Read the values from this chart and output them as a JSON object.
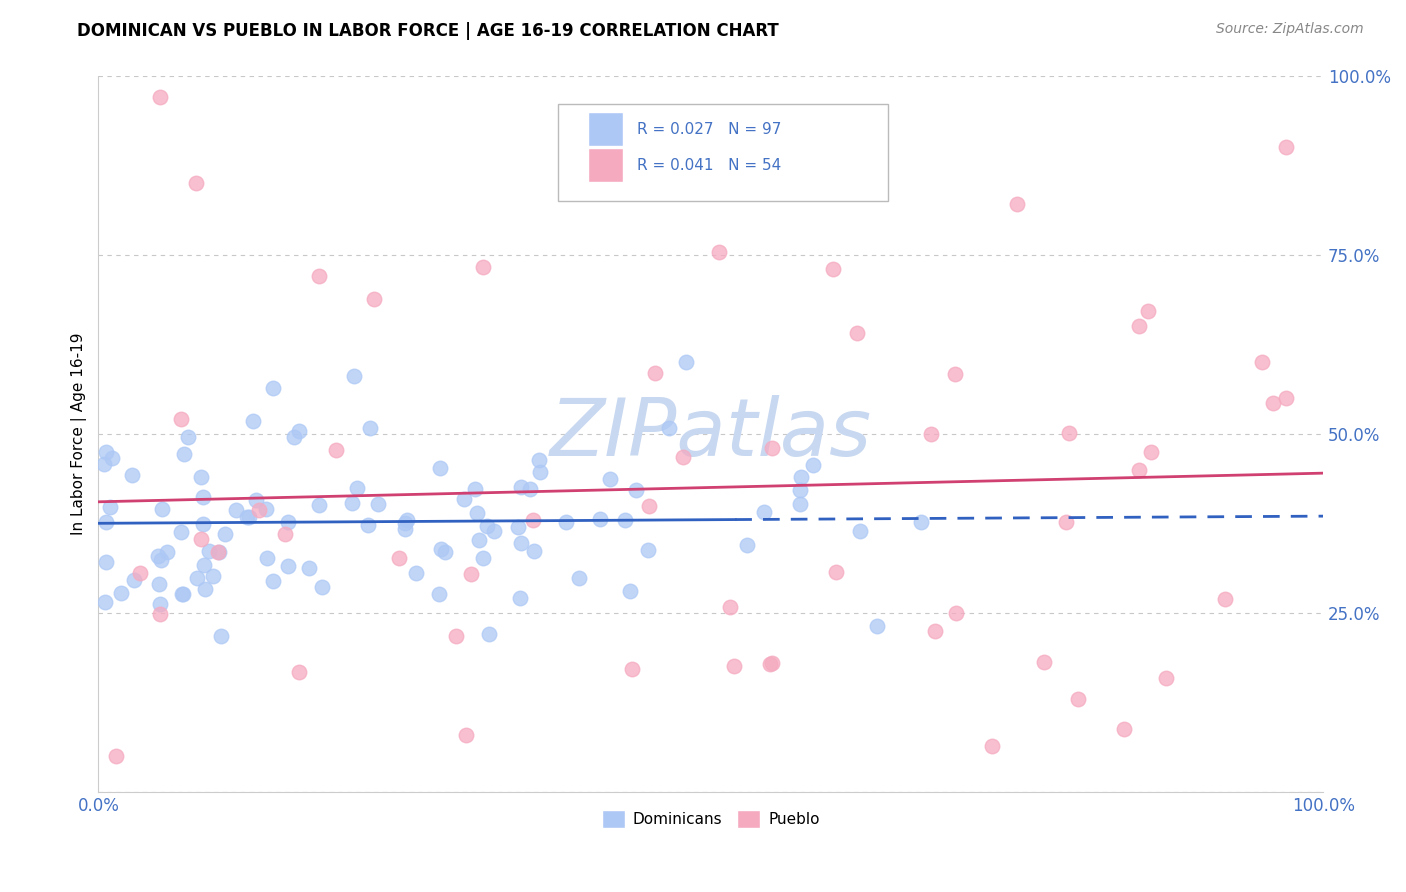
{
  "title": "DOMINICAN VS PUEBLO IN LABOR FORCE | AGE 16-19 CORRELATION CHART",
  "source": "Source: ZipAtlas.com",
  "ylabel": "In Labor Force | Age 16-19",
  "xlim": [
    0.0,
    1.0
  ],
  "ylim": [
    0.0,
    1.0
  ],
  "ytick_vals": [
    0.0,
    0.25,
    0.5,
    0.75,
    1.0
  ],
  "ytick_labels": [
    "",
    "25.0%",
    "50.0%",
    "75.0%",
    "100.0%"
  ],
  "xtick_vals": [
    0.0,
    1.0
  ],
  "xtick_labels": [
    "0.0%",
    "100.0%"
  ],
  "dominican_R": "0.027",
  "dominican_N": "97",
  "pueblo_R": "0.041",
  "pueblo_N": "54",
  "dominican_color": "#adc8f5",
  "pueblo_color": "#f5aac0",
  "dominican_line_color": "#3060c0",
  "pueblo_line_color": "#d04070",
  "text_color": "#4472c4",
  "grid_color": "#c8c8c8",
  "background_color": "#ffffff",
  "dom_line_solid_end": 0.52,
  "dom_line_start_y": 0.375,
  "dom_line_end_y": 0.385,
  "pue_line_start_y": 0.405,
  "pue_line_end_y": 0.445
}
